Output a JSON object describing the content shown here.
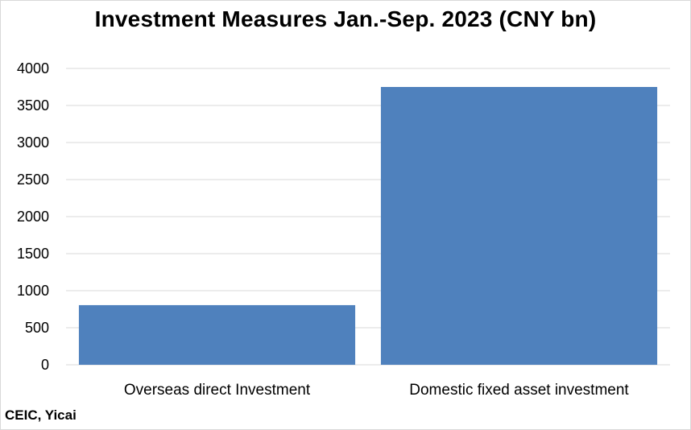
{
  "chart_data": {
    "type": "bar",
    "title": "Investment Measures Jan.-Sep. 2023 (CNY bn)",
    "categories": [
      "Overseas direct Investment",
      "Domestic fixed asset investment"
    ],
    "values": [
      805,
      3750
    ],
    "ylim": [
      0,
      4000
    ],
    "yticks": [
      "0",
      "500",
      "1000",
      "1500",
      "2000",
      "2500",
      "3000",
      "3500",
      "4000"
    ],
    "grid": true,
    "legend": "none",
    "bar_color": "#4f81bd",
    "grid_color": "#d9d9d9"
  },
  "source": "CEIC, Yicai"
}
